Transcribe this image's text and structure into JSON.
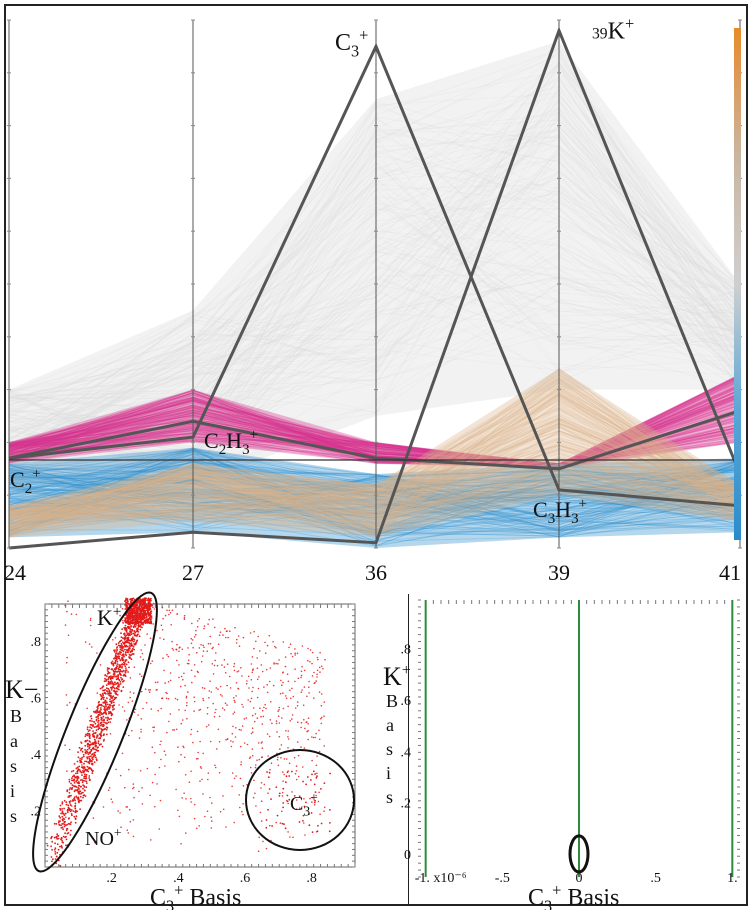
{
  "chart_data": [
    {
      "type": "line",
      "x": [
        "24",
        "27",
        "36",
        "39",
        "41"
      ],
      "series": [
        {
          "name": "C3+",
          "values": [
            0.17,
            0.21,
            0.95,
            0.11,
            0.08
          ]
        },
        {
          "name": "39K+",
          "values": [
            0.0,
            0.03,
            0.01,
            0.98,
            0.14
          ]
        },
        {
          "name": "C2H3+",
          "values": [
            0.17,
            0.24,
            0.17,
            0.15,
            0.26
          ]
        }
      ],
      "bands": [
        {
          "label": "grey",
          "color": "#d9d9d9",
          "low": [
            0.12,
            0.12,
            0.25,
            0.3,
            0.3
          ],
          "high": [
            0.3,
            0.45,
            0.85,
            0.96,
            0.5
          ]
        },
        {
          "label": "magenta",
          "color": "#d6338f",
          "low": [
            0.16,
            0.2,
            0.16,
            0.15,
            0.2
          ],
          "high": [
            0.2,
            0.3,
            0.2,
            0.16,
            0.33
          ]
        },
        {
          "label": "blue",
          "color": "#2b8ccb",
          "low": [
            0.02,
            0.03,
            0.0,
            0.02,
            0.03
          ],
          "high": [
            0.16,
            0.19,
            0.14,
            0.16,
            0.17
          ]
        },
        {
          "label": "tan",
          "color": "#d9b38a",
          "low": [
            0.02,
            0.05,
            0.02,
            0.1,
            0.05
          ],
          "high": [
            0.08,
            0.16,
            0.12,
            0.34,
            0.12
          ]
        }
      ],
      "series_labels": {
        "c3": "C3+",
        "k39": "39K+",
        "c2h3": "C2H3+",
        "c2": "C2+",
        "c3h3": "C3H3+"
      },
      "axis_levels": {
        "24": 0.17,
        "27": 0.21,
        "36": 0.17,
        "39": 0.16,
        "41": 0.17
      },
      "ylim": [
        0,
        1
      ],
      "colorbar": {
        "colors": [
          "#e88a2a",
          "#c9b5a0",
          "#cfcfcf",
          "#5aa6d6",
          "#2b8ccb"
        ]
      }
    },
    {
      "type": "scatter",
      "xlabel": "C3+ Basis",
      "ylabel": "K− Basis",
      "x_ticks": [
        ".2",
        ".4",
        ".6",
        ".8"
      ],
      "y_ticks": [
        ".2",
        ".4",
        ".6",
        ".8"
      ],
      "xlim": [
        0,
        0.93
      ],
      "ylim": [
        0,
        0.93
      ],
      "point_color": "#e21b1b",
      "annotations": {
        "k": "K+",
        "no": "NO+",
        "c3": "C3+"
      },
      "clusters": [
        {
          "label": "K+ / NO+ diagonal",
          "x": [
            0.02,
            0.3
          ],
          "y": [
            0.02,
            0.96
          ],
          "n": 1400
        },
        {
          "label": "spread",
          "x": [
            0.05,
            0.85
          ],
          "y": [
            0.05,
            0.93
          ],
          "n": 900
        },
        {
          "label": "C3+",
          "x": [
            0.66,
            0.86
          ],
          "y": [
            0.12,
            0.35
          ],
          "n": 80
        }
      ]
    },
    {
      "type": "line",
      "xlabel": "C3+ Basis",
      "ylabel": "K+ Basis",
      "x_ticks": [
        "-1. x10⁻⁶",
        "-.5",
        "0",
        ".5",
        "1."
      ],
      "y_ticks": [
        "0",
        ".2",
        ".4",
        ".6",
        ".8"
      ],
      "xlim": [
        -1.05,
        1.05
      ],
      "ylim": [
        -0.09,
        0.99
      ],
      "verticals": [
        -1.0,
        0.0,
        1.0
      ],
      "line_color": "#2e8b3e"
    }
  ]
}
